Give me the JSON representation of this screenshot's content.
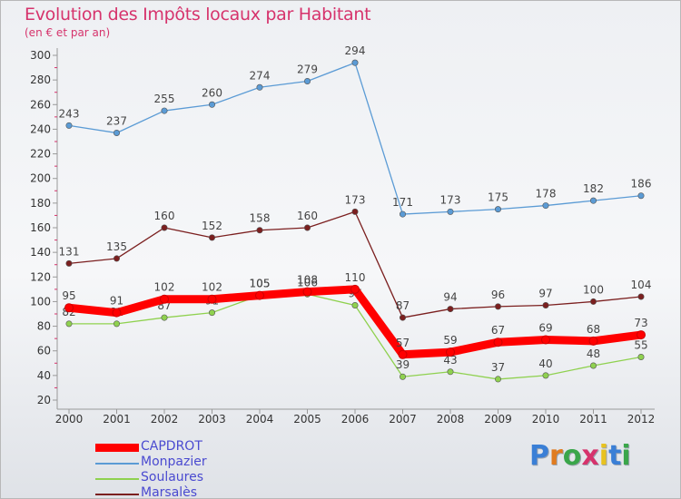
{
  "chart_data": {
    "type": "line",
    "title": "Evolution des Impôts locaux par Habitant",
    "subtitle": "(en € et par an)",
    "xlabel": "",
    "ylabel": "",
    "x": [
      "2000",
      "2001",
      "2002",
      "2003",
      "2004",
      "2005",
      "2006",
      "2007",
      "2008",
      "2009",
      "2010",
      "2011",
      "2012"
    ],
    "ylim": [
      20,
      300
    ],
    "yticks": [
      20,
      40,
      60,
      80,
      100,
      120,
      140,
      160,
      180,
      200,
      220,
      240,
      260,
      280,
      300
    ],
    "grid": false,
    "legend_position": "bottom-left",
    "series": [
      {
        "name": "Monpazier",
        "color": "#5b9bd5",
        "values": [
          243,
          237,
          255,
          260,
          274,
          279,
          294,
          171,
          173,
          175,
          178,
          182,
          186
        ]
      },
      {
        "name": "Marsalès",
        "color": "#7b1f1f",
        "values": [
          131,
          135,
          160,
          152,
          158,
          160,
          173,
          87,
          94,
          96,
          97,
          100,
          104
        ]
      },
      {
        "name": "Soulaures",
        "color": "#8fd14f",
        "values": [
          82,
          82,
          87,
          91,
          105,
          106,
          97,
          39,
          43,
          37,
          40,
          48,
          55
        ]
      },
      {
        "name": "CAPDROT",
        "color": "#ff0000",
        "values": [
          95,
          91,
          102,
          102,
          105,
          108,
          110,
          57,
          59,
          67,
          69,
          68,
          73
        ]
      }
    ],
    "legend_order": [
      "CAPDROT",
      "Monpazier",
      "Soulaures",
      "Marsalès"
    ]
  },
  "brand": {
    "letters": [
      "P",
      "r",
      "o",
      "x",
      "i",
      "t",
      "i"
    ],
    "colors": [
      "#3a7fd6",
      "#e07b1f",
      "#3aa64a",
      "#d6336c",
      "#e8c21f",
      "#3a7fd6",
      "#3aa64a"
    ]
  }
}
